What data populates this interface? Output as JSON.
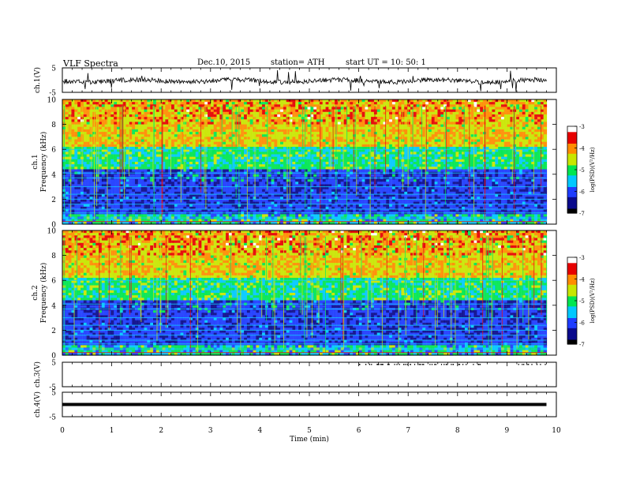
{
  "header": {
    "title": "VLF Spectra",
    "date": "Dec.10, 2015",
    "station": "station= ATH",
    "start": "start  UT =   10: 50: 1"
  },
  "chart_data": {
    "type": "heatmap",
    "xlabel": "Time (min)",
    "xlim": [
      0,
      10
    ],
    "x_ticks": [
      "0",
      "1",
      "2",
      "3",
      "4",
      "5",
      "6",
      "7",
      "8",
      "9",
      "10"
    ],
    "panels": [
      {
        "name": "ch.1(V)",
        "kind": "waveform",
        "ylim": [
          -5,
          5
        ],
        "y_ticks": [
          "5",
          "-5"
        ],
        "data_end_min": 9.8
      },
      {
        "name": "ch.1 Frequency (kHz)",
        "kind": "spectrogram",
        "ylim": [
          0,
          10
        ],
        "y_ticks": [
          "0",
          "2",
          "4",
          "6",
          "8",
          "10"
        ],
        "data_end_min": 9.8
      },
      {
        "name": "ch.2 Frequency (kHz)",
        "kind": "spectrogram",
        "ylim": [
          0,
          10
        ],
        "y_ticks": [
          "0",
          "2",
          "4",
          "6",
          "8",
          "10"
        ],
        "data_end_min": 9.8
      },
      {
        "name": "ch.3(V)",
        "kind": "waveform",
        "ylim": [
          -5,
          5
        ],
        "y_ticks": [
          "5",
          "-5"
        ]
      },
      {
        "name": "ch.4(V)",
        "kind": "waveform",
        "ylim": [
          -5,
          5
        ],
        "y_ticks": [
          "5",
          "-5"
        ],
        "constant_level_v": 0
      }
    ],
    "colorbars": [
      {
        "label": "log(PSD)(V²/Hz)",
        "range": [
          -7,
          -3
        ],
        "ticks": [
          "-3",
          "-4",
          "-5",
          "-6",
          "-7"
        ]
      },
      {
        "label": "log(PSD)(V²/Hz)",
        "range": [
          -7,
          -3
        ],
        "ticks": [
          "-3",
          "-4",
          "-5",
          "-6",
          "-7"
        ]
      }
    ],
    "colormap": [
      "#000000",
      "#0a0a8c",
      "#1e3cff",
      "#00c8ff",
      "#00e650",
      "#c8e600",
      "#ff8c00",
      "#e60000",
      "#ffffff"
    ]
  }
}
